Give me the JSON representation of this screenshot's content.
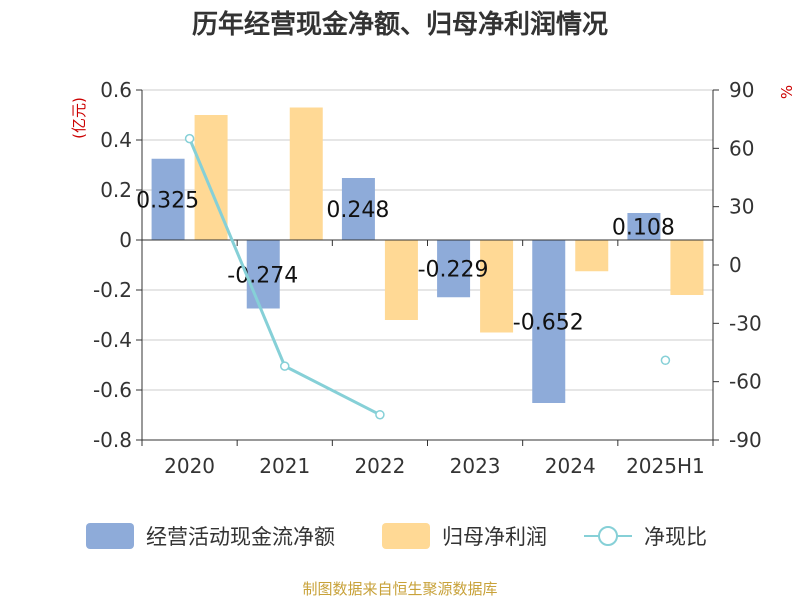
{
  "chart_data": {
    "type": "bar",
    "title": "历年经营现金净额、归母净利润情况",
    "categories": [
      "2020",
      "2021",
      "2022",
      "2023",
      "2024",
      "2025H1"
    ],
    "y_left": {
      "unit": "(亿元)",
      "min": -0.8,
      "max": 0.6,
      "ticks": [
        "0.6",
        "0.4",
        "0.2",
        "0",
        "-0.2",
        "-0.4",
        "-0.6",
        "-0.8"
      ]
    },
    "y_right": {
      "unit": "%",
      "min": -90,
      "max": 90,
      "ticks": [
        "90",
        "60",
        "30",
        "0",
        "-30",
        "-60",
        "-90"
      ]
    },
    "series": [
      {
        "name": "经营活动现金流净额",
        "type": "bar",
        "axis": "left",
        "color": "#8eabd9",
        "values": [
          0.325,
          -0.274,
          0.248,
          -0.229,
          -0.652,
          0.108
        ],
        "labels": [
          "0.325",
          "-0.274",
          "0.248",
          "-0.229",
          "-0.652",
          "0.108"
        ]
      },
      {
        "name": "归母净利润",
        "type": "bar",
        "axis": "left",
        "color": "#ffd995",
        "values": [
          0.5,
          0.53,
          -0.32,
          -0.37,
          -0.125,
          -0.22
        ]
      },
      {
        "name": "净现比",
        "type": "line",
        "axis": "right",
        "color": "#86d0d7",
        "values": [
          65,
          -52,
          -77,
          null,
          null,
          -49
        ]
      }
    ],
    "grid": true,
    "legend_position": "bottom"
  },
  "footer": "制图数据来自恒生聚源数据库"
}
